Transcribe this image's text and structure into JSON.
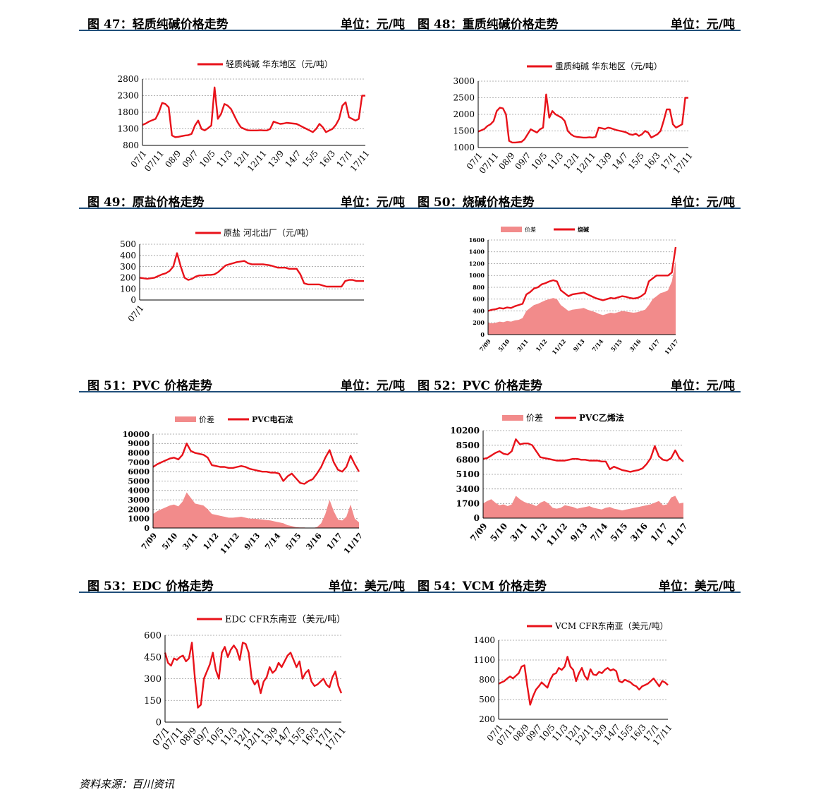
{
  "footer": {
    "source": "资料来源：百川资讯"
  },
  "colors": {
    "line": "#e8121a",
    "area": "#f28b8b",
    "grid": "#999999",
    "rule": "#1f4e79"
  },
  "chart_data": [
    {
      "id": "c47",
      "fig": "图 47：轻质纯碱价格走势",
      "unit": "单位：元/吨",
      "type": "line",
      "legend": [
        "轻质纯碱 华东地区（元/吨）"
      ],
      "ylim": [
        800,
        2800
      ],
      "yticks": [
        800,
        1300,
        1800,
        2300,
        2800
      ],
      "xticks": [
        "07/1",
        "07/11",
        "08/9",
        "09/7",
        "10/5",
        "11/3",
        "12/1",
        "12/11",
        "13/9",
        "14/7",
        "15/5",
        "16/3",
        "17/1",
        "17/11"
      ],
      "series": [
        {
          "kind": "line",
          "values": [
            1420,
            1460,
            1520,
            1560,
            1600,
            1800,
            2080,
            2050,
            1950,
            1100,
            1050,
            1060,
            1080,
            1100,
            1110,
            1150,
            1400,
            1550,
            1300,
            1250,
            1320,
            1400,
            2550,
            1600,
            1750,
            2050,
            2000,
            1900,
            1700,
            1500,
            1350,
            1300,
            1260,
            1250,
            1250,
            1250,
            1260,
            1250,
            1250,
            1300,
            1520,
            1480,
            1450,
            1460,
            1480,
            1470,
            1460,
            1450,
            1400,
            1350,
            1300,
            1250,
            1200,
            1300,
            1450,
            1350,
            1200,
            1250,
            1300,
            1420,
            1600,
            2000,
            2100,
            1650,
            1600,
            1550,
            1600,
            2300,
            2300
          ]
        }
      ]
    },
    {
      "id": "c48",
      "fig": "图 48：重质纯碱价格走势",
      "unit": "单位：元/吨",
      "type": "line",
      "legend": [
        "重质纯碱 华东地区（元/吨）"
      ],
      "ylim": [
        1000,
        3000
      ],
      "yticks": [
        1000,
        1500,
        2000,
        2500,
        3000
      ],
      "xticks": [
        "07/1",
        "07/11",
        "08/9",
        "09/7",
        "10/5",
        "11/3",
        "12/1",
        "12/11",
        "13/9",
        "14/7",
        "15/5",
        "16/3",
        "17/1",
        "17/11"
      ],
      "series": [
        {
          "kind": "line",
          "values": [
            1480,
            1520,
            1560,
            1650,
            1700,
            1800,
            2100,
            2200,
            2180,
            2000,
            1200,
            1150,
            1150,
            1160,
            1170,
            1250,
            1400,
            1550,
            1500,
            1450,
            1550,
            1600,
            2600,
            1900,
            2100,
            2000,
            1950,
            1900,
            1800,
            1500,
            1400,
            1340,
            1320,
            1310,
            1300,
            1300,
            1310,
            1300,
            1320,
            1600,
            1580,
            1560,
            1600,
            1580,
            1550,
            1520,
            1500,
            1480,
            1450,
            1400,
            1380,
            1420,
            1350,
            1400,
            1500,
            1450,
            1300,
            1350,
            1400,
            1500,
            1800,
            2150,
            2150,
            1700,
            1600,
            1650,
            1700,
            2500,
            2500
          ]
        }
      ]
    },
    {
      "id": "c49",
      "fig": "图 49：原盐价格走势",
      "unit": "单位：元/吨",
      "type": "line",
      "legend": [
        "原盐 河北出厂（元/吨）"
      ],
      "ylim": [
        0,
        500
      ],
      "yticks": [
        0,
        100,
        200,
        300,
        400,
        500
      ],
      "xticks": [
        "07/1"
      ],
      "series": [
        {
          "kind": "line",
          "values": [
            200,
            195,
            190,
            195,
            200,
            215,
            230,
            240,
            260,
            300,
            420,
            300,
            200,
            180,
            190,
            210,
            220,
            220,
            225,
            225,
            230,
            250,
            280,
            310,
            320,
            330,
            340,
            345,
            350,
            330,
            320,
            320,
            320,
            320,
            315,
            310,
            300,
            290,
            290,
            290,
            280,
            280,
            280,
            230,
            150,
            140,
            140,
            140,
            140,
            130,
            120,
            120,
            120,
            120,
            120,
            170,
            180,
            180,
            170,
            170,
            170
          ]
        }
      ]
    },
    {
      "id": "c50",
      "fig": "图 50：烧碱价格走势",
      "unit": "单位：元/吨",
      "type": "area",
      "legend": [
        "价差",
        "烧碱"
      ],
      "ylim": [
        0,
        1600
      ],
      "yticks": [
        0,
        200,
        400,
        600,
        800,
        1000,
        1200,
        1400,
        1600
      ],
      "xticks": [
        "7/09",
        "5/10",
        "3/11",
        "1/12",
        "11/12",
        "9/13",
        "7/14",
        "5/15",
        "3/16",
        "1/17",
        "11/17"
      ],
      "series": [
        {
          "kind": "area",
          "name": "价差",
          "values": [
            200,
            190,
            200,
            220,
            210,
            230,
            220,
            240,
            250,
            280,
            400,
            450,
            500,
            520,
            550,
            580,
            600,
            620,
            600,
            500,
            450,
            400,
            420,
            430,
            440,
            450,
            420,
            400,
            380,
            350,
            330,
            350,
            370,
            360,
            380,
            400,
            390,
            380,
            370,
            380,
            400,
            420,
            500,
            600,
            650,
            700,
            720,
            750,
            900,
            1250
          ]
        },
        {
          "kind": "line",
          "name": "烧碱",
          "values": [
            400,
            420,
            430,
            450,
            440,
            460,
            450,
            480,
            500,
            520,
            680,
            720,
            780,
            800,
            850,
            870,
            900,
            920,
            900,
            750,
            700,
            650,
            680,
            690,
            700,
            710,
            680,
            650,
            620,
            600,
            580,
            600,
            620,
            610,
            630,
            650,
            640,
            620,
            610,
            620,
            650,
            700,
            900,
            950,
            1000,
            1000,
            1000,
            1000,
            1050,
            1480
          ]
        }
      ]
    },
    {
      "id": "c51",
      "fig": "图 51：PVC 价格走势",
      "unit": "单位：元/吨",
      "type": "area",
      "legend": [
        "价差",
        "PVC电石法"
      ],
      "ylim": [
        0,
        10000
      ],
      "yticks": [
        0,
        1000,
        2000,
        3000,
        4000,
        5000,
        6000,
        7000,
        8000,
        9000,
        10000
      ],
      "xticks": [
        "7/09",
        "5/10",
        "3/11",
        "1/12",
        "11/12",
        "9/13",
        "7/14",
        "5/15",
        "3/16",
        "1/17",
        "11/17"
      ],
      "series": [
        {
          "kind": "area",
          "name": "价差",
          "values": [
            1500,
            1800,
            2000,
            2200,
            2400,
            2500,
            2300,
            2800,
            3800,
            3200,
            2600,
            2500,
            2400,
            2000,
            1500,
            1400,
            1300,
            1200,
            1100,
            1100,
            1150,
            1200,
            1100,
            1000,
            1000,
            950,
            900,
            850,
            800,
            700,
            600,
            500,
            300,
            200,
            100,
            50,
            50,
            0,
            0,
            100,
            500,
            1500,
            3000,
            1800,
            900,
            800,
            1200,
            2500,
            1000,
            600
          ]
        },
        {
          "kind": "line",
          "name": "PVC电石法",
          "values": [
            6500,
            6800,
            7000,
            7200,
            7400,
            7500,
            7300,
            7800,
            9000,
            8200,
            8000,
            7900,
            7800,
            7500,
            6700,
            6600,
            6500,
            6500,
            6400,
            6400,
            6500,
            6600,
            6500,
            6300,
            6200,
            6100,
            6000,
            6000,
            5900,
            5900,
            5800,
            5000,
            5500,
            5800,
            5300,
            4800,
            4700,
            5000,
            5200,
            5800,
            6500,
            7500,
            8300,
            7000,
            6200,
            6000,
            6500,
            7700,
            6800,
            6000
          ]
        }
      ]
    },
    {
      "id": "c52",
      "fig": "图 52：PVC 价格走势",
      "unit": "单位：元/吨",
      "type": "area",
      "legend": [
        "价差",
        "PVC乙烯法"
      ],
      "ylim": [
        0,
        10200
      ],
      "yticks": [
        0,
        1700,
        3400,
        5100,
        6800,
        8500,
        10200
      ],
      "xticks": [
        "7/09",
        "5/10",
        "3/11",
        "1/12",
        "11/12",
        "9/13",
        "7/14",
        "5/15",
        "3/16",
        "1/17",
        "11/17"
      ],
      "series": [
        {
          "kind": "area",
          "name": "价差",
          "values": [
            1700,
            2000,
            2200,
            1800,
            1500,
            1600,
            1400,
            1600,
            2600,
            2200,
            1900,
            1700,
            1600,
            1400,
            1800,
            2000,
            1700,
            1200,
            1100,
            1200,
            1500,
            1400,
            1300,
            1100,
            1200,
            1300,
            1400,
            1200,
            1100,
            1000,
            1200,
            1300,
            1100,
            1000,
            900,
            1000,
            1100,
            1200,
            1300,
            1400,
            1500,
            1600,
            1800,
            2000,
            1500,
            1600,
            2400,
            2600,
            1700,
            1800
          ]
        },
        {
          "kind": "line",
          "name": "PVC乙烯法",
          "values": [
            6900,
            7000,
            7300,
            7600,
            7800,
            7500,
            7400,
            7800,
            9200,
            8600,
            8700,
            8700,
            8500,
            7800,
            7100,
            7000,
            6900,
            6800,
            6700,
            6700,
            6700,
            6800,
            6900,
            6900,
            6800,
            6800,
            6700,
            6700,
            6700,
            6600,
            6600,
            5700,
            6000,
            5800,
            5600,
            5500,
            5400,
            5500,
            5600,
            5800,
            6300,
            7000,
            8400,
            7200,
            6800,
            6700,
            7000,
            7900,
            7000,
            6600
          ]
        }
      ]
    },
    {
      "id": "c53",
      "fig": "图 53：EDC 价格走势",
      "unit": "单位：美元/吨",
      "type": "line",
      "legend": [
        "EDC CFR东南亚（美元/吨）"
      ],
      "ylim": [
        0,
        600
      ],
      "yticks": [
        0,
        150,
        300,
        450,
        600
      ],
      "xticks": [
        "07/1",
        "07/11",
        "08/9",
        "09/7",
        "10/5",
        "11/3",
        "12/1",
        "12/11",
        "13/9",
        "14/7",
        "15/5",
        "16/3",
        "17/1",
        "17/11"
      ],
      "series": [
        {
          "kind": "line",
          "values": [
            480,
            410,
            390,
            440,
            430,
            450,
            460,
            420,
            440,
            550,
            300,
            100,
            120,
            300,
            350,
            400,
            480,
            360,
            300,
            480,
            520,
            450,
            500,
            530,
            500,
            430,
            550,
            540,
            480,
            300,
            260,
            290,
            200,
            280,
            310,
            380,
            340,
            360,
            410,
            380,
            420,
            460,
            480,
            430,
            380,
            420,
            300,
            340,
            360,
            280,
            250,
            260,
            280,
            300,
            260,
            240,
            310,
            350,
            250,
            200
          ]
        }
      ]
    },
    {
      "id": "c54",
      "fig": "图 54：VCM 价格走势",
      "unit": "单位：美元/吨",
      "type": "line",
      "legend": [
        "VCM CFR东南亚（美元/吨）"
      ],
      "ylim": [
        200,
        1400
      ],
      "yticks": [
        200,
        500,
        800,
        1100,
        1400
      ],
      "xticks": [
        "07/1",
        "07/11",
        "08/9",
        "09/7",
        "10/5",
        "11/3",
        "12/1",
        "12/11",
        "13/9",
        "14/7",
        "15/5",
        "16/3",
        "17/1",
        "17/11"
      ],
      "series": [
        {
          "kind": "line",
          "values": [
            740,
            760,
            780,
            820,
            850,
            820,
            860,
            900,
            1000,
            1020,
            700,
            420,
            550,
            650,
            700,
            760,
            720,
            680,
            800,
            880,
            900,
            980,
            950,
            1000,
            1150,
            1000,
            950,
            780,
            900,
            980,
            860,
            800,
            960,
            880,
            870,
            920,
            900,
            950,
            980,
            940,
            960,
            930,
            780,
            760,
            800,
            780,
            760,
            720,
            700,
            650,
            700,
            720,
            740,
            780,
            820,
            760,
            700,
            780,
            760,
            720
          ]
        }
      ]
    }
  ]
}
